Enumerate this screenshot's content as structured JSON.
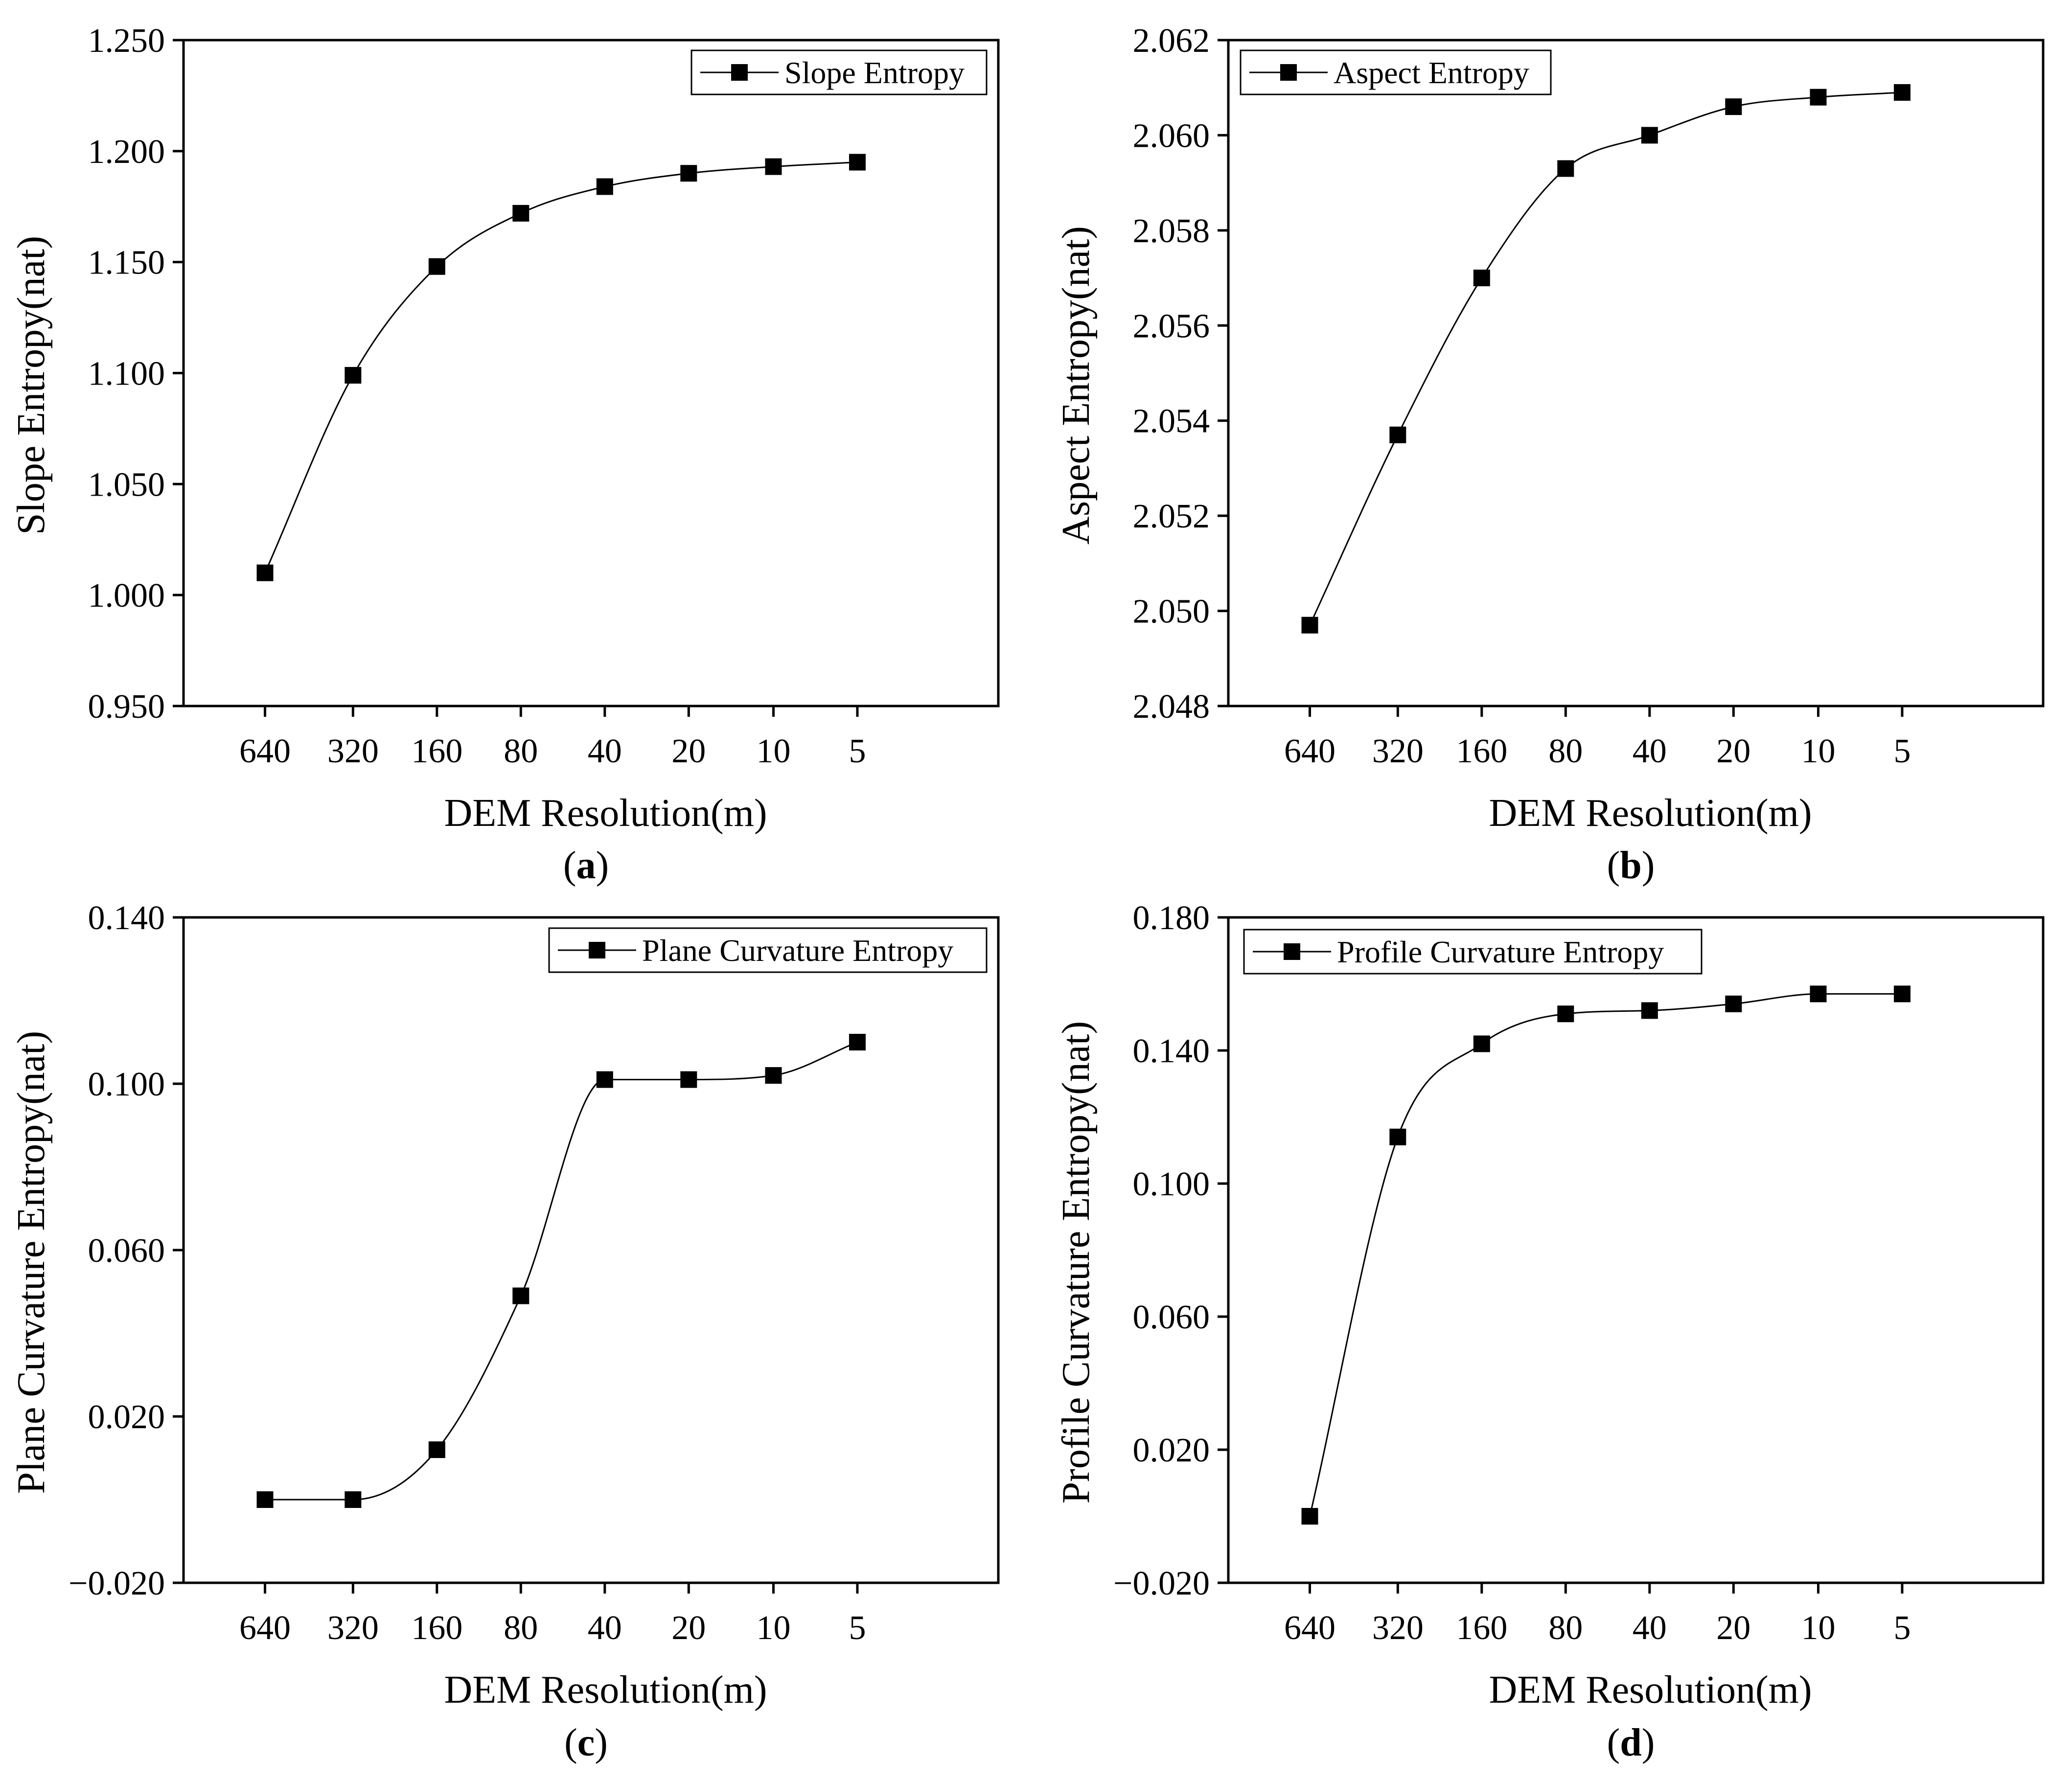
{
  "colors": {
    "line": "#000000",
    "marker": "#000000",
    "background": "#ffffff"
  },
  "chart_data": [
    {
      "id": "a",
      "caption": "a",
      "type": "line",
      "marker": "square",
      "categories": [
        "640",
        "320",
        "160",
        "80",
        "40",
        "20",
        "10",
        "5"
      ],
      "series": [
        {
          "name": "Slope Entropy",
          "values": [
            1.01,
            1.099,
            1.148,
            1.172,
            1.184,
            1.19,
            1.193,
            1.195
          ]
        }
      ],
      "xlabel": "DEM Resolution(m)",
      "ylabel": "Slope Entropy(nat)",
      "ylim": [
        0.95,
        1.25
      ],
      "yticks": [
        0.95,
        1.0,
        1.05,
        1.1,
        1.15,
        1.2,
        1.25
      ],
      "ytick_labels": [
        "0.950",
        "1.000",
        "1.050",
        "1.100",
        "1.150",
        "1.200",
        "1.250"
      ],
      "legend_position": "top-right",
      "grid": false
    },
    {
      "id": "b",
      "caption": "b",
      "type": "line",
      "marker": "square",
      "categories": [
        "640",
        "320",
        "160",
        "80",
        "40",
        "20",
        "10",
        "5"
      ],
      "series": [
        {
          "name": "Aspect Entropy",
          "values": [
            2.0497,
            2.0537,
            2.057,
            2.0593,
            2.06,
            2.0606,
            2.0608,
            2.0609
          ]
        }
      ],
      "xlabel": "DEM Resolution(m)",
      "ylabel": "Aspect Entropy(nat)",
      "ylim": [
        2.048,
        2.062
      ],
      "yticks": [
        2.048,
        2.05,
        2.052,
        2.054,
        2.056,
        2.058,
        2.06,
        2.062
      ],
      "ytick_labels": [
        "2.048",
        "2.050",
        "2.052",
        "2.054",
        "2.056",
        "2.058",
        "2.060",
        "2.062"
      ],
      "legend_position": "top-left",
      "grid": false
    },
    {
      "id": "c",
      "caption": "c",
      "type": "line",
      "marker": "square",
      "categories": [
        "640",
        "320",
        "160",
        "80",
        "40",
        "20",
        "10",
        "5"
      ],
      "series": [
        {
          "name": "Plane Curvature Entropy",
          "values": [
            0.0,
            0.0,
            0.012,
            0.049,
            0.101,
            0.101,
            0.102,
            0.11
          ]
        }
      ],
      "xlabel": "DEM Resolution(m)",
      "ylabel": "Plane Curvature Entropy(nat)",
      "ylim": [
        -0.02,
        0.14
      ],
      "yticks": [
        -0.02,
        0.02,
        0.06,
        0.1,
        0.14
      ],
      "ytick_labels": [
        "−0.020",
        "0.020",
        "0.060",
        "0.100",
        "0.140"
      ],
      "legend_position": "top-right",
      "grid": false
    },
    {
      "id": "d",
      "caption": "d",
      "type": "line",
      "marker": "square",
      "categories": [
        "640",
        "320",
        "160",
        "80",
        "40",
        "20",
        "10",
        "5"
      ],
      "series": [
        {
          "name": "Profile Curvature Entropy",
          "values": [
            0.0,
            0.114,
            0.142,
            0.151,
            0.152,
            0.154,
            0.157,
            0.157
          ]
        }
      ],
      "xlabel": "DEM Resolution(m)",
      "ylabel": "Profile Curvature Entropy(nat)",
      "ylim": [
        -0.02,
        0.18
      ],
      "yticks": [
        -0.02,
        0.02,
        0.06,
        0.1,
        0.14,
        0.18
      ],
      "ytick_labels": [
        "−0.020",
        "0.020",
        "0.060",
        "0.100",
        "0.140",
        "0.180"
      ],
      "legend_position": "top-left",
      "grid": false
    }
  ]
}
